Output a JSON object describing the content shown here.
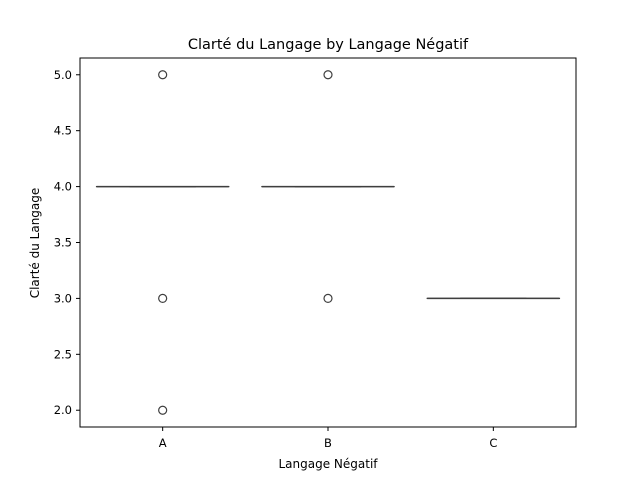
{
  "chart_data": {
    "type": "box",
    "title": "Clarté du Langage by Langage Négatif",
    "xlabel": "Langage Négatif",
    "ylabel": "Clarté du Langage",
    "categories": [
      "A",
      "B",
      "C"
    ],
    "ylim": [
      1.85,
      5.15
    ],
    "yticks": [
      "2.0",
      "2.5",
      "3.0",
      "3.5",
      "4.0",
      "4.5",
      "5.0"
    ],
    "grid": false,
    "boxes": [
      {
        "category": "A",
        "q1": 4.0,
        "median": 4.0,
        "q3": 4.0,
        "whisker_low": 4.0,
        "whisker_high": 4.0,
        "outliers": [
          5.0,
          3.0,
          2.0
        ]
      },
      {
        "category": "B",
        "q1": 4.0,
        "median": 4.0,
        "q3": 4.0,
        "whisker_low": 4.0,
        "whisker_high": 4.0,
        "outliers": [
          5.0,
          3.0
        ]
      },
      {
        "category": "C",
        "q1": 3.0,
        "median": 3.0,
        "q3": 3.0,
        "whisker_low": 3.0,
        "whisker_high": 3.0,
        "outliers": []
      }
    ],
    "colors": {
      "box_line": "#3f3f3f",
      "outlier_edge": "#3f3f3f",
      "axis": "#000000"
    }
  }
}
